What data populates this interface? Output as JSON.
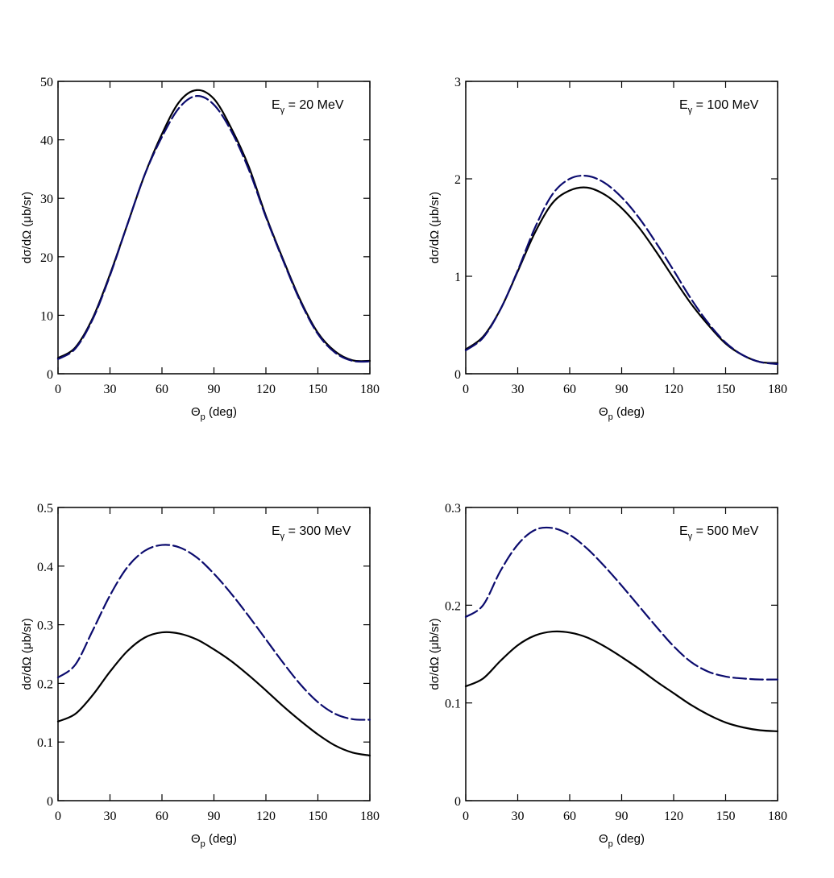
{
  "chart_data": [
    {
      "type": "line",
      "xlabel_symbol": "Θ",
      "xlabel_sub": "p",
      "xlabel_unit": " (deg)",
      "ylabel": "dσ/dΩ (μb/sr)",
      "annotation_main": "E",
      "annotation_sub": "γ",
      "annotation_value": " = 20 MeV",
      "xlim": [
        0,
        180
      ],
      "ylim": [
        0,
        50
      ],
      "xticks": [
        0,
        30,
        60,
        90,
        120,
        150,
        180
      ],
      "yticks": [
        0,
        10,
        20,
        30,
        40,
        50
      ],
      "x": [
        0,
        10,
        20,
        30,
        40,
        50,
        60,
        70,
        80,
        90,
        100,
        110,
        120,
        130,
        140,
        150,
        160,
        170,
        180
      ],
      "series": [
        {
          "name": "solid",
          "style": "solid",
          "color": "#000000",
          "values": [
            2.7,
            4.5,
            9.5,
            17.0,
            25.5,
            34.0,
            41.0,
            46.5,
            48.5,
            47.0,
            42.0,
            35.5,
            27.0,
            19.5,
            12.5,
            7.0,
            3.8,
            2.3,
            2.2
          ]
        },
        {
          "name": "dashed",
          "style": "dashed",
          "color": "#0b0b6e",
          "values": [
            2.5,
            4.3,
            9.3,
            16.8,
            25.5,
            34.0,
            40.5,
            45.5,
            47.5,
            46.0,
            41.5,
            35.0,
            26.8,
            19.3,
            12.3,
            6.8,
            3.6,
            2.2,
            2.1
          ]
        }
      ]
    },
    {
      "type": "line",
      "xlabel_symbol": "Θ",
      "xlabel_sub": "p",
      "xlabel_unit": " (deg)",
      "ylabel": "dσ/dΩ (μb/sr)",
      "annotation_main": "E",
      "annotation_sub": "γ",
      "annotation_value": " = 100 MeV",
      "xlim": [
        0,
        180
      ],
      "ylim": [
        0,
        3
      ],
      "xticks": [
        0,
        30,
        60,
        90,
        120,
        150,
        180
      ],
      "yticks": [
        0,
        1,
        2,
        3
      ],
      "x": [
        0,
        10,
        20,
        30,
        40,
        50,
        60,
        70,
        80,
        90,
        100,
        110,
        120,
        130,
        140,
        150,
        160,
        170,
        180
      ],
      "series": [
        {
          "name": "solid",
          "style": "solid",
          "color": "#000000",
          "values": [
            0.25,
            0.38,
            0.66,
            1.05,
            1.45,
            1.75,
            1.88,
            1.91,
            1.84,
            1.7,
            1.5,
            1.25,
            0.98,
            0.72,
            0.5,
            0.31,
            0.19,
            0.12,
            0.11
          ]
        },
        {
          "name": "dashed",
          "style": "dashed",
          "color": "#0b0b6e",
          "values": [
            0.24,
            0.37,
            0.66,
            1.06,
            1.5,
            1.84,
            2.0,
            2.03,
            1.96,
            1.81,
            1.6,
            1.34,
            1.06,
            0.77,
            0.52,
            0.32,
            0.19,
            0.12,
            0.1
          ]
        }
      ]
    },
    {
      "type": "line",
      "xlabel_symbol": "Θ",
      "xlabel_sub": "p",
      "xlabel_unit": " (deg)",
      "ylabel": "dσ/dΩ (μb/sr)",
      "annotation_main": "E",
      "annotation_sub": "γ",
      "annotation_value": " = 300 MeV",
      "xlim": [
        0,
        180
      ],
      "ylim": [
        0,
        0.5
      ],
      "xticks": [
        0,
        30,
        60,
        90,
        120,
        150,
        180
      ],
      "yticks": [
        0,
        0.1,
        0.2,
        0.3,
        0.4,
        0.5
      ],
      "x": [
        0,
        10,
        20,
        30,
        40,
        50,
        60,
        70,
        80,
        90,
        100,
        110,
        120,
        130,
        140,
        150,
        160,
        170,
        180
      ],
      "series": [
        {
          "name": "solid",
          "style": "solid",
          "color": "#000000",
          "values": [
            0.135,
            0.148,
            0.18,
            0.22,
            0.255,
            0.278,
            0.287,
            0.285,
            0.275,
            0.258,
            0.238,
            0.214,
            0.188,
            0.161,
            0.136,
            0.113,
            0.094,
            0.082,
            0.077
          ]
        },
        {
          "name": "dashed",
          "style": "dashed",
          "color": "#0b0b6e",
          "values": [
            0.21,
            0.232,
            0.29,
            0.35,
            0.398,
            0.426,
            0.436,
            0.432,
            0.415,
            0.387,
            0.353,
            0.315,
            0.275,
            0.235,
            0.198,
            0.168,
            0.148,
            0.139,
            0.138
          ]
        }
      ]
    },
    {
      "type": "line",
      "xlabel_symbol": "Θ",
      "xlabel_sub": "p",
      "xlabel_unit": " (deg)",
      "ylabel": "dσ/dΩ (μb/sr)",
      "annotation_main": "E",
      "annotation_sub": "γ",
      "annotation_value": " = 500 MeV",
      "xlim": [
        0,
        180
      ],
      "ylim": [
        0,
        0.3
      ],
      "xticks": [
        0,
        30,
        60,
        90,
        120,
        150,
        180
      ],
      "yticks": [
        0,
        0.1,
        0.2,
        0.3
      ],
      "x": [
        0,
        10,
        20,
        30,
        40,
        50,
        60,
        70,
        80,
        90,
        100,
        110,
        120,
        130,
        140,
        150,
        160,
        170,
        180
      ],
      "series": [
        {
          "name": "solid",
          "style": "solid",
          "color": "#000000",
          "values": [
            0.117,
            0.125,
            0.143,
            0.159,
            0.169,
            0.173,
            0.172,
            0.167,
            0.158,
            0.147,
            0.135,
            0.122,
            0.11,
            0.098,
            0.088,
            0.08,
            0.075,
            0.072,
            0.071
          ]
        },
        {
          "name": "dashed",
          "style": "dashed",
          "color": "#0b0b6e",
          "values": [
            0.188,
            0.2,
            0.235,
            0.262,
            0.277,
            0.279,
            0.272,
            0.258,
            0.24,
            0.22,
            0.199,
            0.178,
            0.158,
            0.142,
            0.132,
            0.127,
            0.125,
            0.124,
            0.124
          ]
        }
      ]
    }
  ]
}
